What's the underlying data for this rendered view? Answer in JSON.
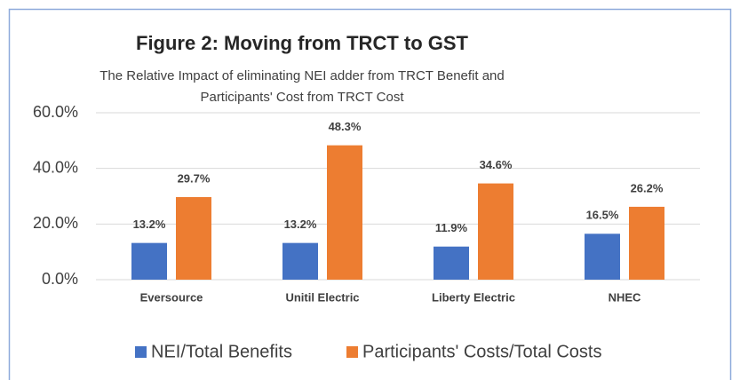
{
  "chart_data": {
    "type": "bar",
    "title": "Figure 2: Moving from TRCT to GST",
    "subtitle": [
      "The Relative Impact of eliminating NEI adder from TRCT Benefit and",
      "Participants' Cost from TRCT Cost"
    ],
    "categories": [
      "Eversource",
      "Unitil Electric",
      "Liberty Electric",
      "NHEC"
    ],
    "series": [
      {
        "name": "NEI/Total Benefits",
        "color": "#4472c4",
        "values": [
          13.2,
          13.2,
          11.9,
          16.5
        ],
        "value_labels": [
          "13.2%",
          "13.2%",
          "11.9%",
          "16.5%"
        ]
      },
      {
        "name": "Participants' Costs/Total Costs",
        "color": "#ed7d31",
        "values": [
          29.7,
          48.3,
          34.6,
          26.2
        ],
        "value_labels": [
          "29.7%",
          "48.3%",
          "34.6%",
          "26.2%"
        ]
      }
    ],
    "ylim": [
      0,
      60
    ],
    "yticks": [
      {
        "value": 0,
        "label": "0.0%"
      },
      {
        "value": 20,
        "label": "20.0%"
      },
      {
        "value": 40,
        "label": "40.0%"
      },
      {
        "value": 60,
        "label": "60.0%"
      }
    ],
    "grid": true,
    "legend": "bottom"
  }
}
